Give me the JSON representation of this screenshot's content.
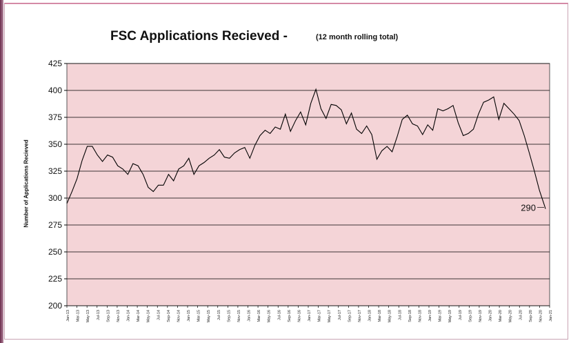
{
  "chart_data": {
    "type": "line",
    "title": "FSC Applications Recieved -",
    "subtitle": "(12 month rolling total)",
    "ylabel": "Number of Applications Recieved",
    "xlabel": "",
    "ylim": [
      200,
      425
    ],
    "yticks": [
      200,
      225,
      250,
      275,
      300,
      325,
      350,
      375,
      400,
      425
    ],
    "grid": true,
    "legend": "none",
    "colors": {
      "plot_bg": "#f4d4d7",
      "line": "#000000",
      "grid": "#000000"
    },
    "x_tick_labels": [
      "Jan-13",
      "Mar-13",
      "May-13",
      "Jul-13",
      "Sep-13",
      "Nov-13",
      "Jan-14",
      "Mar-14",
      "May-14",
      "Jul-14",
      "Sep-14",
      "Nov-14",
      "Jan-15",
      "Mar-15",
      "May-15",
      "Jul-15",
      "Sep-15",
      "Nov-15",
      "Jan-16",
      "Mar-16",
      "May-16",
      "Jul-16",
      "Sep-16",
      "Nov-16",
      "Jan-17",
      "Mar-17",
      "May-17",
      "Jul-17",
      "Sep-17",
      "Nov-17",
      "Jan-18",
      "Mar-18",
      "May-18",
      "Jul-18",
      "Sep-18",
      "Nov-18",
      "Jan-19",
      "Mar-19",
      "May-19",
      "Jul-19",
      "Sep-19",
      "Nov-19",
      "Jan-20",
      "Mar-20",
      "May-20",
      "Jul-20",
      "Sep-20",
      "Nov-20",
      "Jan-21"
    ],
    "series": [
      {
        "values": [
          295,
          306,
          318,
          335,
          348,
          348,
          340,
          334,
          340,
          338,
          330,
          327,
          322,
          332,
          330,
          322,
          310,
          306,
          312,
          312,
          322,
          316,
          327,
          330,
          337,
          322,
          330,
          333,
          337,
          340,
          345,
          338,
          337,
          342,
          345,
          347,
          337,
          349,
          358,
          363,
          360,
          366,
          364,
          378,
          362,
          372,
          380,
          368,
          388,
          401,
          383,
          374,
          387,
          386,
          382,
          369,
          379,
          364,
          360,
          367,
          359,
          336,
          344,
          348,
          343,
          357,
          373,
          377,
          369,
          367,
          359,
          368,
          363,
          383,
          381,
          383,
          386,
          370,
          358,
          360,
          364,
          378,
          389,
          391,
          394,
          373,
          388,
          383,
          378,
          372,
          358,
          342,
          325,
          307,
          293,
          290
        ],
        "end_label": "290"
      }
    ]
  }
}
